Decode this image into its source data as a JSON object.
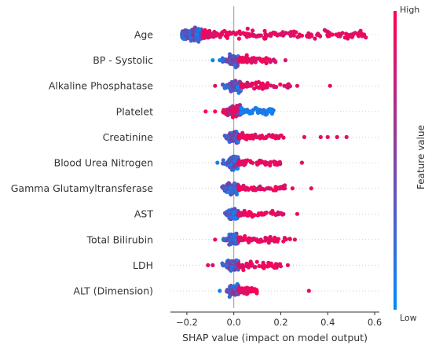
{
  "chart_data": {
    "type": "scatter",
    "subtype": "shap-beeswarm-summary",
    "xlabel": "SHAP value (impact on model output)",
    "xlim": [
      -0.27,
      0.62
    ],
    "xticks": [
      -0.2,
      0.0,
      0.2,
      0.4,
      0.6
    ],
    "xtick_labels": [
      "−0.2",
      "0.0",
      "0.2",
      "0.4",
      "0.6"
    ],
    "features": [
      {
        "name": "Age",
        "dense": [
          -0.22,
          0.58
        ],
        "core": [
          -0.22,
          -0.13
        ],
        "skew": "high-right",
        "outliers": [
          0.28,
          0.33,
          0.42,
          0.5,
          0.55
        ]
      },
      {
        "name": "BP - Systolic",
        "dense": [
          -0.05,
          0.18
        ],
        "core": [
          -0.02,
          0.02
        ],
        "skew": "high-right",
        "outliers": [
          -0.09,
          -0.06,
          0.22
        ]
      },
      {
        "name": "Alkaline Phosphatase",
        "dense": [
          -0.05,
          0.24
        ],
        "core": [
          -0.02,
          0.03
        ],
        "skew": "high-right",
        "outliers": [
          -0.08,
          0.27,
          0.41
        ]
      },
      {
        "name": "Platelet",
        "dense": [
          -0.05,
          0.17
        ],
        "core": [
          -0.03,
          0.03
        ],
        "skew": "high-left",
        "outliers": [
          -0.12,
          -0.08
        ]
      },
      {
        "name": "Creatinine",
        "dense": [
          -0.04,
          0.22
        ],
        "core": [
          -0.02,
          0.02
        ],
        "skew": "high-right",
        "outliers": [
          0.3,
          0.37,
          0.4,
          0.44,
          0.48
        ]
      },
      {
        "name": "Blood Urea Nitrogen",
        "dense": [
          -0.05,
          0.2
        ],
        "core": [
          -0.02,
          0.02
        ],
        "skew": "high-right",
        "outliers": [
          -0.07,
          0.29
        ]
      },
      {
        "name": "Gamma Glutamyltransferase",
        "dense": [
          -0.05,
          0.22
        ],
        "core": [
          -0.03,
          0.02
        ],
        "skew": "high-right",
        "outliers": [
          0.25,
          0.33
        ]
      },
      {
        "name": "AST",
        "dense": [
          -0.04,
          0.22
        ],
        "core": [
          -0.02,
          0.02
        ],
        "skew": "high-right",
        "outliers": [
          0.27
        ]
      },
      {
        "name": "Total Bilirubin",
        "dense": [
          -0.05,
          0.24
        ],
        "core": [
          -0.02,
          0.02
        ],
        "skew": "high-right",
        "outliers": [
          -0.08,
          0.26
        ]
      },
      {
        "name": "LDH",
        "dense": [
          -0.05,
          0.2
        ],
        "core": [
          -0.03,
          0.02
        ],
        "skew": "high-right",
        "outliers": [
          -0.11,
          -0.09,
          0.23
        ]
      },
      {
        "name": "ALT (Dimension)",
        "dense": [
          -0.03,
          0.1
        ],
        "core": [
          -0.02,
          0.02
        ],
        "skew": "high-right",
        "outliers": [
          -0.06,
          0.32
        ]
      }
    ],
    "colorbar": {
      "title": "Feature value",
      "high_label": "High",
      "low_label": "Low",
      "high_color": "#ff0052",
      "low_color": "#008bfb"
    },
    "zero_line_color": "#999999",
    "grid": false
  }
}
